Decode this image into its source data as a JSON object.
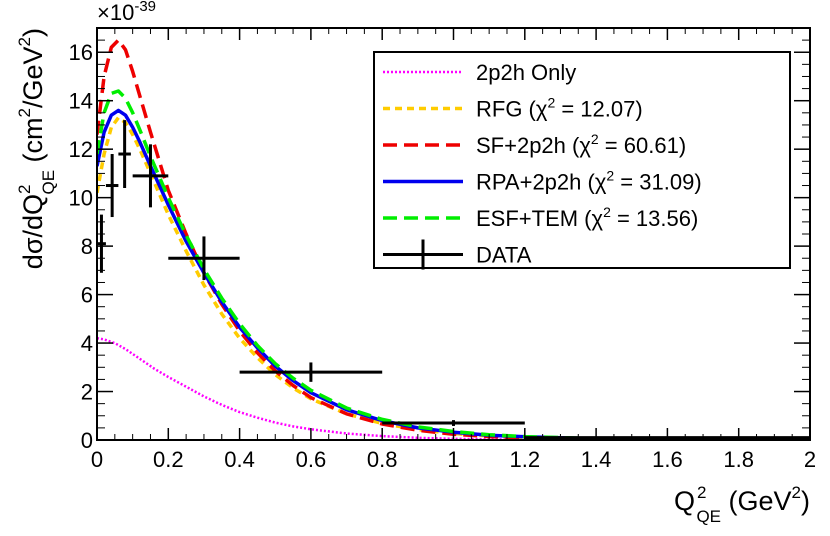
{
  "chart_data": {
    "type": "line",
    "title": "",
    "multiplier": {
      "base": "×10",
      "exponent": "-39"
    },
    "xlabel": {
      "main": "Q",
      "sup": "2",
      "sub": "QE",
      "unit_open": " (GeV",
      "unit_sup": "2",
      "unit_close": ")"
    },
    "ylabel": {
      "p1": "dσ/dQ",
      "sup1": "2",
      "sub1": "QE",
      "p2": " (cm",
      "sup2": "2",
      "p3": "/GeV",
      "sup3": "2",
      "p4": ")"
    },
    "xlim": [
      0,
      2
    ],
    "ylim": [
      0,
      17
    ],
    "xticks": [
      0,
      0.2,
      0.4,
      0.6,
      0.8,
      1,
      1.2,
      1.4,
      1.6,
      1.8,
      2
    ],
    "xtick_labels": [
      "0",
      "0.2",
      "0.4",
      "0.6",
      "0.8",
      "1",
      "1.2",
      "1.4",
      "1.6",
      "1.8",
      "2"
    ],
    "yticks": [
      0,
      2,
      4,
      6,
      8,
      10,
      12,
      14,
      16
    ],
    "ytick_labels": [
      "0",
      "2",
      "4",
      "6",
      "8",
      "10",
      "12",
      "14",
      "16"
    ],
    "legend_position": "top-right",
    "series": [
      {
        "name": "2p2h Only",
        "key": "2p2h",
        "color": "#ff00ff",
        "dash": "2,2",
        "width": 2.5,
        "x": [
          0,
          0.02,
          0.05,
          0.08,
          0.12,
          0.16,
          0.2,
          0.25,
          0.3,
          0.35,
          0.4,
          0.45,
          0.5,
          0.55,
          0.6,
          0.7,
          0.8,
          0.9,
          1.0,
          1.1,
          1.2,
          1.4,
          1.6,
          1.8,
          2.0
        ],
        "y": [
          4.2,
          4.15,
          4.0,
          3.75,
          3.35,
          2.95,
          2.6,
          2.2,
          1.8,
          1.45,
          1.15,
          0.92,
          0.72,
          0.56,
          0.44,
          0.27,
          0.16,
          0.09,
          0.05,
          0.03,
          0.015,
          0.006,
          0.002,
          0.001,
          0.0
        ]
      },
      {
        "name": "RFG (χ² = 12.07)",
        "key": "rfg",
        "color": "#ffcc00",
        "dash": "7,5",
        "width": 3.5,
        "x": [
          0,
          0.02,
          0.04,
          0.06,
          0.08,
          0.1,
          0.12,
          0.15,
          0.2,
          0.25,
          0.3,
          0.35,
          0.4,
          0.45,
          0.5,
          0.55,
          0.6,
          0.7,
          0.8,
          0.9,
          1.0,
          1.1,
          1.2,
          1.4,
          1.6,
          1.8,
          2.0
        ],
        "y": [
          10.2,
          11.8,
          12.9,
          13.3,
          13.1,
          12.6,
          12.0,
          11.0,
          9.3,
          7.8,
          6.4,
          5.2,
          4.2,
          3.4,
          2.7,
          2.15,
          1.7,
          1.08,
          0.68,
          0.43,
          0.27,
          0.17,
          0.11,
          0.045,
          0.018,
          0.007,
          0.003
        ]
      },
      {
        "name": "SF+2p2h (χ² = 60.61)",
        "key": "sf",
        "color": "#ee0000",
        "dash": "14,7",
        "width": 3.5,
        "x": [
          0,
          0.02,
          0.04,
          0.06,
          0.08,
          0.1,
          0.12,
          0.15,
          0.2,
          0.25,
          0.3,
          0.35,
          0.4,
          0.45,
          0.5,
          0.55,
          0.6,
          0.7,
          0.8,
          0.9,
          1.0,
          1.1,
          1.2,
          1.4,
          1.6,
          1.8,
          2.0
        ],
        "y": [
          12.6,
          15.0,
          16.2,
          16.5,
          16.1,
          15.2,
          14.2,
          12.7,
          10.3,
          8.5,
          6.9,
          5.6,
          4.5,
          3.6,
          2.85,
          2.25,
          1.75,
          1.08,
          0.66,
          0.4,
          0.24,
          0.14,
          0.085,
          0.03,
          0.011,
          0.004,
          0.002
        ]
      },
      {
        "name": "RPA+2p2h (χ² = 31.09)",
        "key": "rpa",
        "color": "#0000ee",
        "dash": "",
        "width": 3.5,
        "x": [
          0,
          0.02,
          0.04,
          0.06,
          0.08,
          0.1,
          0.12,
          0.15,
          0.2,
          0.25,
          0.3,
          0.35,
          0.4,
          0.45,
          0.5,
          0.55,
          0.6,
          0.7,
          0.8,
          0.9,
          1.0,
          1.1,
          1.2,
          1.4,
          1.6,
          1.8,
          2.0
        ],
        "y": [
          11.3,
          12.7,
          13.4,
          13.6,
          13.4,
          12.9,
          12.3,
          11.3,
          9.7,
          8.2,
          6.9,
          5.7,
          4.65,
          3.8,
          3.05,
          2.45,
          1.95,
          1.25,
          0.8,
          0.5,
          0.32,
          0.2,
          0.13,
          0.055,
          0.022,
          0.009,
          0.004
        ]
      },
      {
        "name": "ESF+TEM (χ² = 13.56)",
        "key": "esf",
        "color": "#00ee00",
        "dash": "14,7",
        "width": 3.5,
        "x": [
          0,
          0.02,
          0.04,
          0.06,
          0.08,
          0.1,
          0.12,
          0.15,
          0.2,
          0.25,
          0.3,
          0.35,
          0.4,
          0.45,
          0.5,
          0.55,
          0.6,
          0.7,
          0.8,
          0.9,
          1.0,
          1.1,
          1.2,
          1.4,
          1.6,
          1.8,
          2.0
        ],
        "y": [
          11.8,
          13.5,
          14.3,
          14.4,
          14.1,
          13.5,
          12.8,
          11.7,
          10.0,
          8.45,
          7.05,
          5.85,
          4.8,
          3.9,
          3.15,
          2.55,
          2.05,
          1.32,
          0.85,
          0.54,
          0.35,
          0.22,
          0.14,
          0.058,
          0.023,
          0.009,
          0.004
        ]
      }
    ],
    "data_points": {
      "name": "DATA",
      "color": "#000000",
      "points": [
        {
          "x": 0.0125,
          "xerr": 0.0125,
          "y": 8.1,
          "yerr": 1.2
        },
        {
          "x": 0.0425,
          "xerr": 0.0175,
          "y": 10.5,
          "yerr": 1.3
        },
        {
          "x": 0.0775,
          "xerr": 0.0175,
          "y": 11.8,
          "yerr": 1.4
        },
        {
          "x": 0.15,
          "xerr": 0.05,
          "y": 10.9,
          "yerr": 1.3
        },
        {
          "x": 0.3,
          "xerr": 0.1,
          "y": 7.5,
          "yerr": 0.9
        },
        {
          "x": 0.6,
          "xerr": 0.2,
          "y": 2.8,
          "yerr": 0.4
        },
        {
          "x": 1.0,
          "xerr": 0.2,
          "y": 0.7,
          "yerr": 0.12
        },
        {
          "x": 1.6,
          "xerr": 0.4,
          "y": 0.1,
          "yerr": 0.03
        }
      ]
    },
    "legend": [
      {
        "key": "2p2h",
        "label": "2p2h Only",
        "type": "line",
        "pre": "2p2h Only",
        "sup": "",
        "post": ""
      },
      {
        "key": "rfg",
        "label": "RFG (χ² = 12.07)",
        "type": "line",
        "pre": "RFG (χ",
        "sup": "2",
        "post": " = 12.07)"
      },
      {
        "key": "sf",
        "label": "SF+2p2h (χ² = 60.61)",
        "type": "line",
        "pre": "SF+2p2h (χ",
        "sup": "2",
        "post": " = 60.61)"
      },
      {
        "key": "rpa",
        "label": "RPA+2p2h (χ² = 31.09)",
        "type": "line",
        "pre": "RPA+2p2h (χ",
        "sup": "2",
        "post": " = 31.09)"
      },
      {
        "key": "esf",
        "label": "ESF+TEM (χ² = 13.56)",
        "type": "line",
        "pre": "ESF+TEM (χ",
        "sup": "2",
        "post": " = 13.56)"
      },
      {
        "key": "data",
        "label": "DATA",
        "type": "errorbar",
        "pre": "DATA",
        "sup": "",
        "post": ""
      }
    ]
  }
}
